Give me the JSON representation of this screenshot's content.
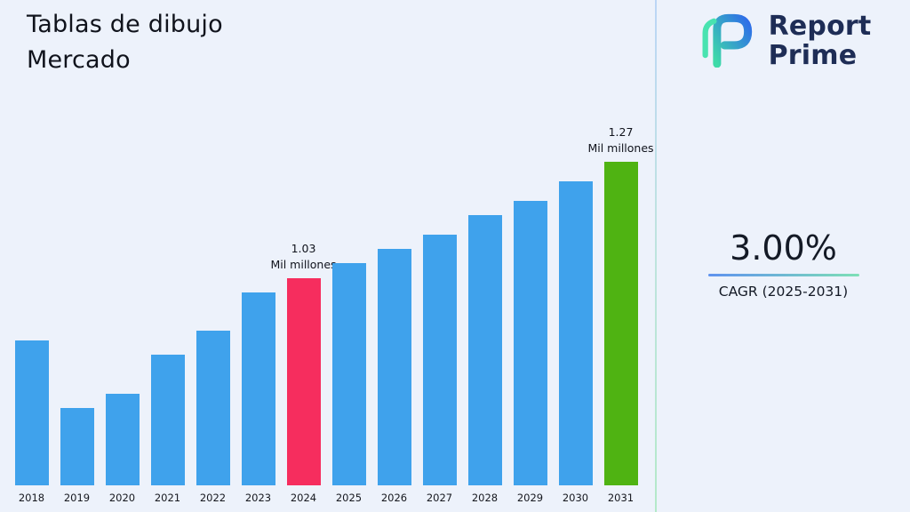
{
  "title": {
    "line1": "Tablas de dibujo",
    "line2": "Mercado"
  },
  "logo": {
    "line1": "Report",
    "line2": "Prime"
  },
  "cagr": {
    "value": "3.00%",
    "label": "CAGR (2025-2031)"
  },
  "chart_data": {
    "type": "bar",
    "title": "Tablas de dibujo Mercado",
    "xlabel": "",
    "ylabel": "",
    "unit": "Mil millones",
    "categories": [
      "2018",
      "2019",
      "2020",
      "2021",
      "2022",
      "2023",
      "2024",
      "2025",
      "2026",
      "2027",
      "2028",
      "2029",
      "2030",
      "2031"
    ],
    "values": [
      0.9,
      0.76,
      0.79,
      0.87,
      0.92,
      1.0,
      1.03,
      1.06,
      1.09,
      1.12,
      1.16,
      1.19,
      1.23,
      1.27
    ],
    "ylim": [
      0.6,
      1.3
    ],
    "grid": false,
    "legend": false,
    "annotations": [
      {
        "category": "2024",
        "value_label": "1.03",
        "unit_label": "Mil millones"
      },
      {
        "category": "2031",
        "value_label": "1.27",
        "unit_label": "Mil millones"
      }
    ],
    "bar_colors": {
      "default": "#3FA2EC",
      "2024": "#F62D5E",
      "2031": "#4FB312"
    }
  }
}
